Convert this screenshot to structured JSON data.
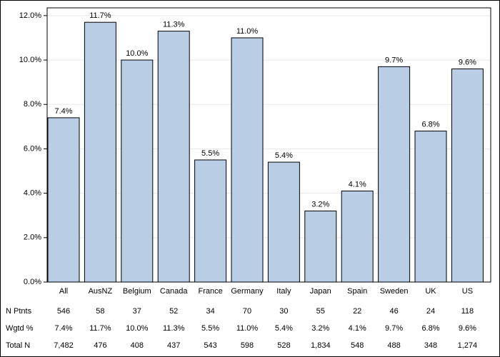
{
  "chart_data": {
    "type": "bar",
    "categories": [
      "All",
      "AusNZ",
      "Belgium",
      "Canada",
      "France",
      "Germany",
      "Italy",
      "Japan",
      "Spain",
      "Sweden",
      "UK",
      "US"
    ],
    "values": [
      7.4,
      11.7,
      10.0,
      11.3,
      5.5,
      11.0,
      5.4,
      3.2,
      4.1,
      9.7,
      6.8,
      9.6
    ],
    "value_labels": [
      "7.4%",
      "11.7%",
      "10.0%",
      "11.3%",
      "5.5%",
      "11.0%",
      "5.4%",
      "3.2%",
      "4.1%",
      "9.7%",
      "6.8%",
      "9.6%"
    ],
    "color": "#b9cde5",
    "ylim": [
      0,
      12.35
    ],
    "yticks": [
      {
        "value": 0,
        "label": "0.0%"
      },
      {
        "value": 2,
        "label": "2.0%"
      },
      {
        "value": 4,
        "label": "4.0%"
      },
      {
        "value": 6,
        "label": "6.0%"
      },
      {
        "value": 8,
        "label": "8.0%"
      },
      {
        "value": 10,
        "label": "10.0%"
      },
      {
        "value": 12,
        "label": "12.0%"
      }
    ],
    "grid": true,
    "table": {
      "rows": [
        {
          "label": "N Ptnts",
          "cells": [
            "546",
            "58",
            "37",
            "52",
            "34",
            "70",
            "30",
            "55",
            "22",
            "46",
            "24",
            "118"
          ]
        },
        {
          "label": "Wgtd %",
          "cells": [
            "7.4%",
            "11.7%",
            "10.0%",
            "11.3%",
            "5.5%",
            "11.0%",
            "5.4%",
            "3.2%",
            "4.1%",
            "9.7%",
            "6.8%",
            "9.6%"
          ]
        },
        {
          "label": "Total N",
          "cells": [
            "7,482",
            "476",
            "408",
            "437",
            "543",
            "598",
            "528",
            "1,834",
            "548",
            "488",
            "348",
            "1,274"
          ]
        }
      ]
    }
  }
}
